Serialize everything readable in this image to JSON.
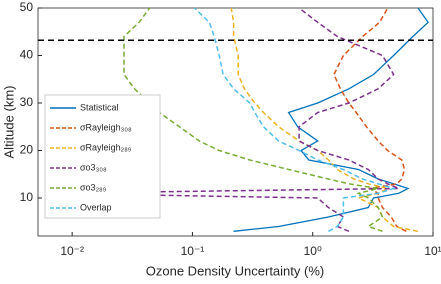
{
  "chart_data": {
    "type": "line",
    "xlabel": "Ozone Density Uncertainty (%)",
    "ylabel": "Altitude (km)",
    "xscale": "log",
    "xlim": [
      0.0052,
      10
    ],
    "ylim": [
      2,
      50
    ],
    "xticks": [
      {
        "value": 0.01,
        "label": "10⁻²"
      },
      {
        "value": 0.1,
        "label": "10⁻¹"
      },
      {
        "value": 1,
        "label": "10⁰"
      },
      {
        "value": 10,
        "label": "10¹"
      }
    ],
    "yticks": [
      10,
      20,
      30,
      40,
      50
    ],
    "hline": 43.2,
    "y": [
      3,
      4,
      6,
      8,
      10,
      11,
      12,
      13,
      14,
      16,
      18,
      20,
      22,
      25,
      28,
      30,
      33,
      36,
      40,
      44,
      47,
      50
    ],
    "series": [
      {
        "name": "Statistical",
        "color": "#0072bd",
        "style": "solid",
        "x": [
          0.22,
          0.52,
          1.35,
          2.9,
          3.2,
          5.2,
          6.2,
          4.7,
          3.5,
          2.4,
          0.93,
          0.8,
          1.1,
          0.75,
          0.63,
          1.1,
          2.0,
          3.2,
          4.7,
          6.8,
          9.1,
          7.5
        ]
      },
      {
        "name": "σRayleigh₃₀₈",
        "color": "#d95319",
        "style": "dashed",
        "x": [
          6,
          5,
          4.5,
          3.8,
          3.5,
          3.5,
          3,
          5,
          5.5,
          5.8,
          5.5,
          4.2,
          3.5,
          2.8,
          2.3,
          2.0,
          1.7,
          1.5,
          1.8,
          2.6,
          3.6,
          4.2
        ]
      },
      {
        "name": "σRayleigh₂₈₉",
        "color": "#edb120",
        "style": "dashed",
        "x": [
          7.5,
          4.7,
          3.8,
          3.5,
          2.4,
          3.5,
          4.2,
          2.9,
          2.2,
          1.6,
          1.35,
          1.1,
          0.77,
          0.52,
          0.39,
          0.33,
          0.27,
          0.24,
          0.24,
          0.22,
          0.22,
          0.21
        ]
      },
      {
        "name": "σo3₃₀₈",
        "color": "#7e2f8e",
        "style": "dashed",
        "x": [
          2.0,
          1.6,
          1.8,
          1.35,
          1.1,
          0.0062,
          5.2,
          4.2,
          3.5,
          2.9,
          2.0,
          1.1,
          0.77,
          0.77,
          1.1,
          2.0,
          3.5,
          4.7,
          3.8,
          1.6,
          1.1,
          0.77
        ]
      },
      {
        "name": "σo3₂₈₉",
        "color": "#77ac30",
        "style": "dashed",
        "x": [
          3.8,
          2.9,
          3.8,
          3.5,
          2.9,
          2.4,
          3.5,
          2.0,
          1.35,
          0.63,
          0.3,
          0.167,
          0.114,
          0.078,
          0.053,
          0.044,
          0.033,
          0.027,
          0.027,
          0.027,
          0.036,
          0.044
        ]
      },
      {
        "name": "Overlap",
        "color": "#4dbeee",
        "style": "dashed",
        "x": [
          1.35,
          1.6,
          1.8,
          1.8,
          1.8,
          3.5,
          4.7,
          3.5,
          2.6,
          1.8,
          1.1,
          0.77,
          0.52,
          0.39,
          0.33,
          0.3,
          0.22,
          0.18,
          0.167,
          0.152,
          0.138,
          0.104
        ]
      }
    ]
  }
}
